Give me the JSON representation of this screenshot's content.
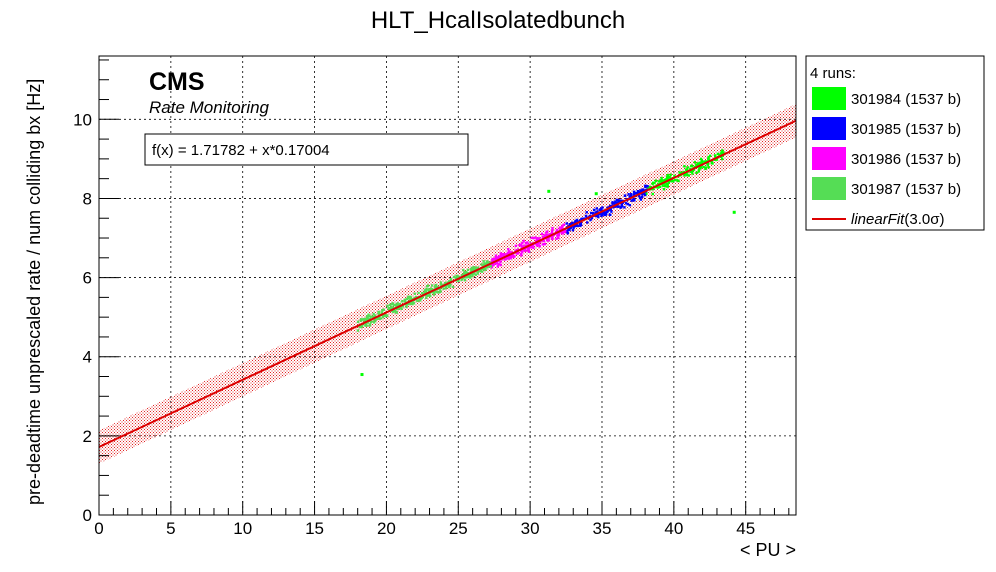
{
  "chart_data": {
    "type": "scatter",
    "title": "HLT_HcalIsolatedbunch",
    "xlabel": "< PU >",
    "ylabel": "pre-deadtime unprescaled rate / num colliding bx [Hz]",
    "xlim": [
      0,
      48.5
    ],
    "ylim": [
      0,
      11.6
    ],
    "xticks": [
      "0",
      "5",
      "10",
      "15",
      "20",
      "25",
      "30",
      "35",
      "40",
      "45"
    ],
    "yticks": [
      "0",
      "2",
      "4",
      "6",
      "8",
      "10"
    ],
    "grid": true,
    "watermark": "CMS",
    "watermark_sub": "Rate Monitoring",
    "fit_text": "f(x) = 1.71782 + x*0.17004",
    "fit": {
      "intercept": 1.71782,
      "slope": 0.17004,
      "band": 0.42,
      "color": "#dd0000",
      "x_range": [
        0,
        48.5
      ]
    },
    "legend_header": "4 runs:",
    "legend_position": "right",
    "series": [
      {
        "name": "301984 (1537 b)",
        "color": "#00ff00",
        "x_range": [
          38,
          43.5
        ],
        "count": 170
      },
      {
        "name": "301985 (1537 b)",
        "color": "#0000ff",
        "x_range": [
          32.5,
          38.2
        ],
        "count": 200
      },
      {
        "name": "301986 (1537 b)",
        "color": "#ff00ff",
        "x_range": [
          27,
          32.5
        ],
        "count": 230
      },
      {
        "name": "301987 (1537 b)",
        "color": "#55dd55",
        "x_range": [
          18,
          27.3
        ],
        "count": 360
      }
    ],
    "outliers": [
      {
        "x": 31.3,
        "y": 8.18,
        "color": "#00ff00"
      },
      {
        "x": 44.2,
        "y": 7.65,
        "color": "#00ff00"
      },
      {
        "x": 18.3,
        "y": 3.55,
        "color": "#00ff00"
      },
      {
        "x": 34.6,
        "y": 8.12,
        "color": "#00ff00"
      }
    ],
    "fit_legend": {
      "label_main": "linearFit",
      "label_sigma": "(3.0σ)"
    }
  }
}
